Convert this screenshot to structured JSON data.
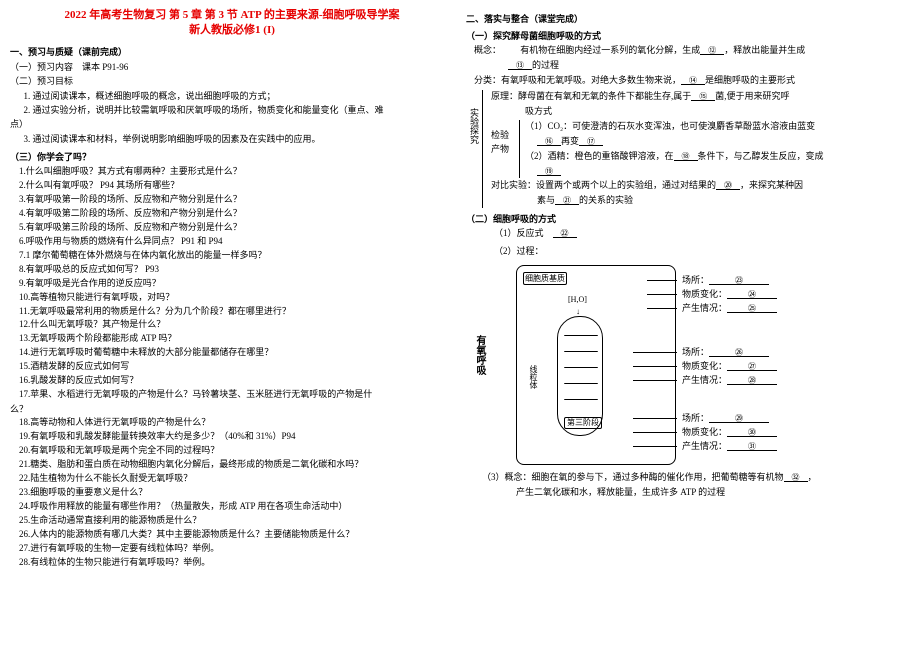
{
  "title": "2022 年高考生物复习 第 5 章 第 3 节 ATP 的主要来源-细胞呼吸导学案",
  "subtitle": "新人教版必修1 (I)",
  "s1": {
    "h": "一、预习与质疑（课前完成）",
    "a": "（一）预习内容",
    "at": "课本 P91-96",
    "b": "（二）预习目标",
    "b1": "1. 通过阅读课本，概述细胞呼吸的概念，说出细胞呼吸的方式；",
    "b2": "2. 通过实验分析，说明并比较需氧呼吸和厌氧呼吸的场所，物质变化和能量变化（重点、难",
    "b2b": "点）",
    "b3": "3. 通过阅读课本和材料，举例说明影响细胞呼吸的因素及在实践中的应用。",
    "c": "（三）你学会了吗？"
  },
  "qs": [
    "1.什么叫细胞呼吸？其方式有哪两种？主要形式是什么？",
    "2.什么叫有氧呼吸？ P94 其场所有哪些？",
    "3.有氧呼吸第一阶段的场所、反应物和产物分别是什么？",
    "4.有氧呼吸第二阶段的场所、反应物和产物分别是什么？",
    "5.有氧呼吸第三阶段的场所、反应物和产物分别是什么？",
    "6.呼吸作用与物质的燃烧有什么异同点？ P91 和 P94",
    "7.1 摩尔葡萄糖在体外燃烧与在体内氧化放出的能量一样多吗？",
    "8.有氧呼吸总的反应式如何写？ P93",
    "9.有氧呼吸是光合作用的逆反应吗？",
    "10.高等植物只能进行有氧呼吸，对吗？",
    "11.无氧呼吸最常利用的物质是什么？分为几个阶段？都在哪里进行？",
    "12.什么叫无氧呼吸？其产物是什么？",
    "13.无氧呼吸两个阶段都能形成 ATP 吗？",
    "14.进行无氧呼吸时葡萄糖中未释放的大部分能量都储存在哪里？",
    "15.酒精发酵的反应式如何写",
    "16.乳酸发酵的反应式如何写？",
    "17.苹果、水稻进行无氧呼吸的产物是什么？马铃薯块茎、玉米胚进行无氧呼吸的产物是什"
  ],
  "q17b": "么？",
  "qs2": [
    "18.高等动物和人体进行无氧呼吸的产物是什么？",
    "19.有氧呼吸和乳酸发酵能量转换效率大约是多少？（40%和 31%）P94",
    "20.有氧呼吸和无氧呼吸是两个完全不同的过程吗？",
    "21.糖类、脂肪和蛋白质在动物细胞内氧化分解后，最终形成的物质是二氧化碳和水吗？",
    "22.陆生植物为什么不能长久耐受无氧呼吸？",
    "23.细胞呼吸的重要意义是什么？",
    "24.呼吸作用释放的能量有哪些作用？（热量散失，形成 ATP 用在各项生命活动中）",
    "25.生命活动通常直接利用的能源物质是什么？",
    "26.人体内的能源物质有哪几大类？其中主要能源物质是什么？主要储能物质是什么？",
    "27.进行有氧呼吸的生物一定要有线粒体吗？举例。",
    "28.有线粒体的生物只能进行有氧呼吸吗？举例。"
  ],
  "s2": {
    "h": "二、落实与整合（课堂完成）",
    "a": "（一）探究酵母菌细胞呼吸的方式",
    "c1": "概念：",
    "c1t": "有机物在细胞内经过一系列的氧化分解，生成",
    "b12": "⑫",
    "c1t2": "，释放出能量并生成",
    "b13": "⑬",
    "c1t3": "的过程",
    "c2": "分类：有氧呼吸和无氧呼吸。对绝大多数生物来说，",
    "b14": "⑭",
    "c2t": "是细胞呼吸的主要形式",
    "c3a": "原理：酵母菌在有氧和无氧的条件下都能生存,属于",
    "b15": "⑮",
    "c3b": "菌,便于用来研究呼",
    "c3c": "吸方式",
    "c4a": "（1）CO₂：可使澄清的石灰水变浑浊，也可使溴麝香草酚蓝水溶液由蓝变",
    "b16": "⑯",
    "c4b": "再变",
    "b17": "⑰",
    "c5a": "（2）酒精：橙色的重铬酸钾溶液，在",
    "b18": "⑱",
    "c5b": "条件下，与乙醇发生反应，变成",
    "b19": "⑲",
    "lab1": "检验",
    "lab2": "产物",
    "lab3": "实验探究",
    "c6a": "对比实验：设置两个或两个以上的实验组，通过对结果的",
    "b20": "⑳",
    "c6b": "，来探究某种因",
    "c6c": "素与",
    "b21": "㉑",
    "c6d": "的关系的实验"
  },
  "s3": {
    "h": "（二）细胞呼吸的方式",
    "r1": "（1）反应式",
    "b22": "㉒",
    "r2": "（2）过程：",
    "lab_yy": "有氧呼吸",
    "lab_cell": "细胞质基质",
    "lab_mito": "线粒体",
    "L1": "场所：",
    "b23": "㉓",
    "L2": "物质变化：",
    "b24": "㉔",
    "L3": "产生情况：",
    "b25": "㉕",
    "L4": "场所：",
    "b26": "㉖",
    "L5": "物质变化：",
    "b27": "㉗",
    "L6": "产生情况：",
    "b28": "㉘",
    "L7": "场所：",
    "b29": "㉙",
    "L8": "物质变化：",
    "b30": "㉚",
    "L9": "产生情况：",
    "b31": "㉛",
    "st": "第三阶段",
    "r3a": "（3）概念：细胞在氧的参与下，通过多种酶的催化作用，把葡萄糖等有机物",
    "b32": "㉜",
    "r3b": "，",
    "r3c": "产生二氧化碳和水，释放能量，生成许多 ATP 的过程"
  }
}
